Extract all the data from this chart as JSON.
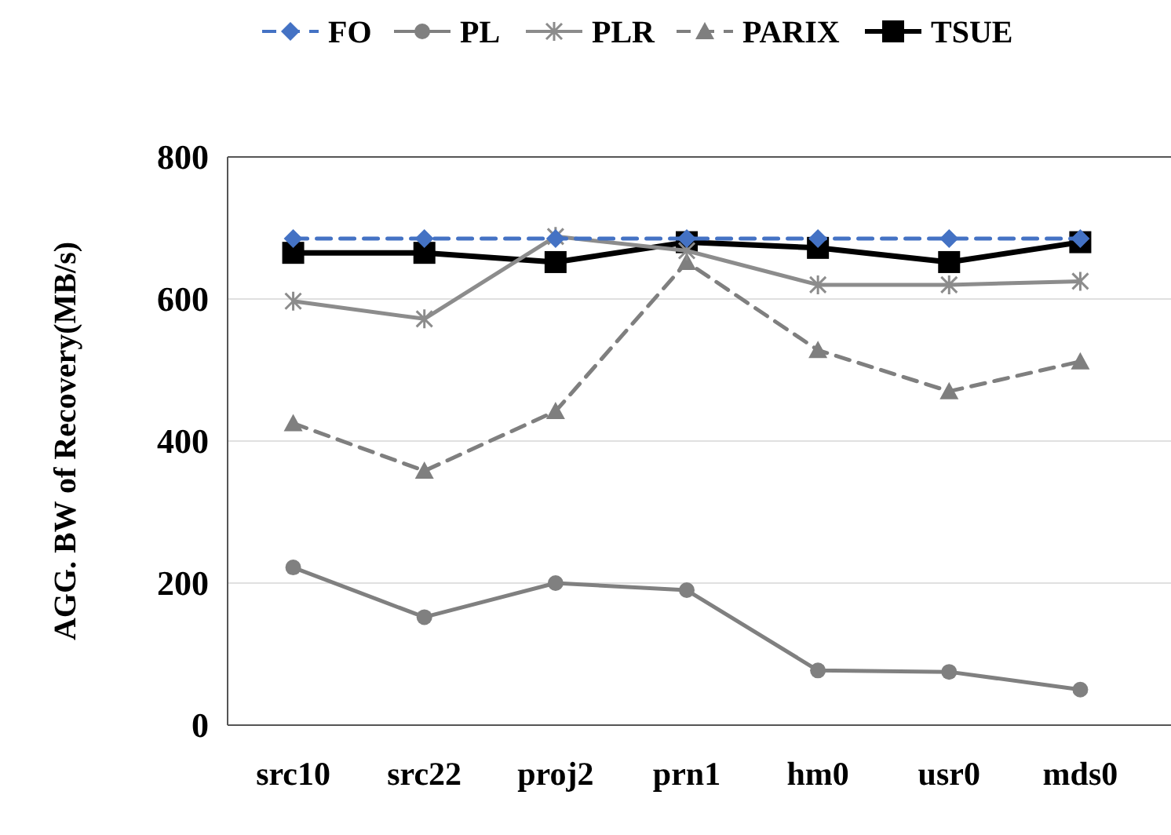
{
  "chart_data": {
    "type": "line",
    "ylabel": "AGG. BW of Recovery(MB/s)",
    "categories": [
      "src10",
      "src22",
      "proj2",
      "prn1",
      "hm0",
      "usr0",
      "mds0"
    ],
    "series": [
      {
        "name": "FO",
        "color": "#4472c4",
        "marker": "diamond",
        "line_style": "dashed",
        "values": [
          685,
          685,
          685,
          685,
          685,
          685,
          685
        ]
      },
      {
        "name": "PL",
        "color": "#808080",
        "marker": "circle",
        "line_style": "solid",
        "values": [
          222,
          152,
          200,
          190,
          77,
          75,
          50
        ]
      },
      {
        "name": "PLR",
        "color": "#8c8c8c",
        "marker": "cross",
        "line_style": "solid",
        "values": [
          597,
          572,
          688,
          668,
          620,
          620,
          625
        ]
      },
      {
        "name": "PARIX",
        "color": "#7f7f7f",
        "marker": "triangle",
        "line_style": "dashed",
        "values": [
          425,
          358,
          442,
          652,
          528,
          470,
          512
        ]
      },
      {
        "name": "TSUE",
        "color": "#000000",
        "marker": "square",
        "line_style": "solid",
        "values": [
          665,
          665,
          652,
          680,
          672,
          652,
          680
        ]
      }
    ],
    "ylim": [
      0,
      800
    ],
    "yticks": [
      0,
      200,
      400,
      600,
      800
    ],
    "grid": "y",
    "legend": "top"
  }
}
